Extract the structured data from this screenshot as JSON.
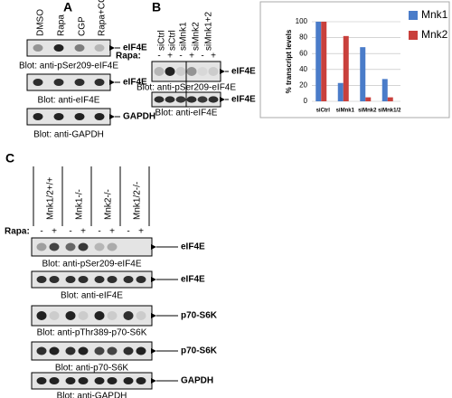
{
  "panel_a": {
    "label": "A",
    "lanes": [
      "DMSO",
      "Rapa",
      "CGP",
      "Rapa+CGP"
    ],
    "blots": [
      {
        "target": "eIF4E",
        "caption": "Blot: anti-pSer209-eIF4E"
      },
      {
        "target": "eIF4E",
        "caption": "Blot: anti-eIF4E"
      },
      {
        "target": "GAPDH",
        "caption": "Blot: anti-GAPDH"
      }
    ]
  },
  "panel_b": {
    "label": "B",
    "lanes": [
      "siCtrl",
      "siCtrl",
      "siMnk1",
      "siMnk2",
      "siMnk1+2"
    ],
    "rapa_label": "Rapa:",
    "rapa": [
      "-",
      "+",
      "-",
      "+",
      "-",
      "+"
    ],
    "blots": [
      {
        "target": "eIF4E",
        "caption": "Blot: anti-pSer209-eIF4E"
      },
      {
        "target": "eIF4E",
        "caption": "Blot: anti-eIF4E"
      }
    ]
  },
  "chart_data": {
    "type": "bar",
    "y_label": "% transcript levels",
    "categories": [
      "siCtrl",
      "siMnk1",
      "siMnk2",
      "siMnk1/2"
    ],
    "series": [
      {
        "name": "Mnk1",
        "color": "#4a7cc9",
        "values": [
          100,
          23,
          68,
          28
        ]
      },
      {
        "name": "Mnk2",
        "color": "#c9403c",
        "values": [
          100,
          82,
          5,
          5
        ]
      }
    ],
    "ylim": [
      0,
      100
    ],
    "yticks": [
      0,
      20,
      40,
      60,
      80,
      100
    ],
    "grid": true
  },
  "panel_c": {
    "label": "C",
    "lanes": [
      "Mnk1/2+/+",
      "Mnk1-/-",
      "Mnk2-/-",
      "Mnk1/2-/-"
    ],
    "rapa_label": "Rapa:",
    "rapa": [
      "-",
      "+",
      "-",
      "+",
      "-",
      "+",
      "-",
      "+"
    ],
    "blots": [
      {
        "target": "eIF4E",
        "caption": "Blot: anti-pSer209-eIF4E"
      },
      {
        "target": "eIF4E",
        "caption": "Blot: anti-eIF4E"
      },
      {
        "target": "p70-S6K",
        "caption": "Blot: anti-pThr389-p70-S6K"
      },
      {
        "target": "p70-S6K",
        "caption": "Blot: anti-p70-S6K"
      },
      {
        "target": "GAPDH",
        "caption": "Blot: anti-GAPDH"
      }
    ]
  }
}
